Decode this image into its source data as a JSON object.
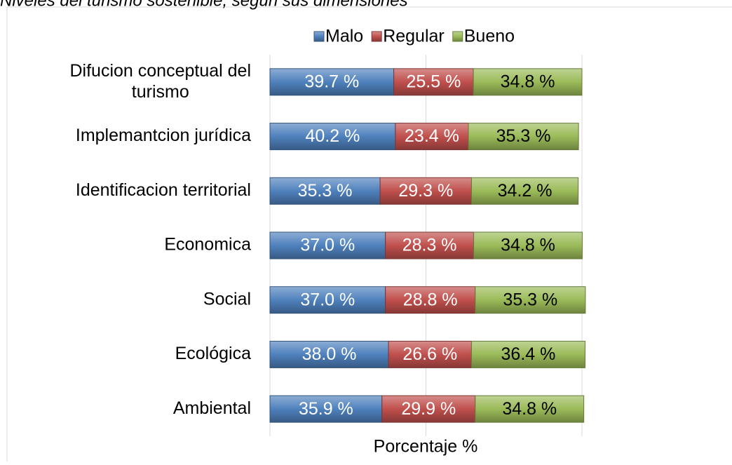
{
  "chart_data": {
    "type": "stacked_barh",
    "title": "Niveles del turismo sostenible, según sus dimensiones",
    "xlabel": "Porcentaje %",
    "categories": [
      "Difucion conceptual del turismo",
      "Implemantcion jurídica",
      "Identificacion territorial",
      "Economica",
      "Social",
      "Ecológica",
      "Ambiental"
    ],
    "series": [
      {
        "name": "Malo",
        "color": "#4f81bd",
        "values": [
          39.7,
          40.2,
          35.3,
          37.0,
          37.0,
          38.0,
          35.9
        ],
        "value_labels": [
          "39.7 %",
          "40.2 %",
          "35.3 %",
          "37.0 %",
          "37.0 %",
          "38.0 %",
          "35.9 %"
        ]
      },
      {
        "name": "Regular",
        "color": "#c0504d",
        "values": [
          25.5,
          23.4,
          29.3,
          28.3,
          28.8,
          26.6,
          29.9
        ],
        "value_labels": [
          "25.5 %",
          "23.4 %",
          "29.3 %",
          "28.3 %",
          "28.8 %",
          "26.6 %",
          "29.9 %"
        ]
      },
      {
        "name": "Bueno",
        "color": "#9bbb59",
        "values": [
          34.8,
          35.3,
          34.2,
          34.8,
          35.3,
          36.4,
          34.8
        ],
        "value_labels": [
          "34.8 %",
          "35.3 %",
          "34.2 %",
          "34.8 %",
          "35.3 %",
          "36.4 %",
          "34.8 %"
        ]
      }
    ],
    "xlim": [
      0,
      100
    ],
    "xticks": [
      0,
      50,
      100
    ],
    "grid": true,
    "legend": "top"
  }
}
